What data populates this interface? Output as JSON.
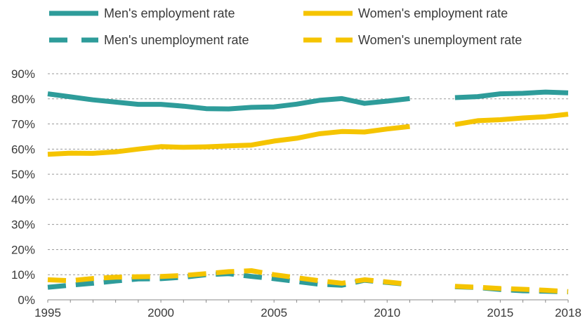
{
  "chart_data": {
    "type": "line",
    "title": "",
    "xlabel": "",
    "ylabel": "",
    "x": [
      1995,
      1996,
      1997,
      1998,
      1999,
      2000,
      2001,
      2002,
      2003,
      2004,
      2005,
      2006,
      2007,
      2008,
      2009,
      2010,
      2011,
      2012,
      2013,
      2014,
      2015,
      2016,
      2017,
      2018
    ],
    "xlim": [
      1995,
      2018
    ],
    "ylim": [
      0,
      90
    ],
    "x_ticks": [
      "1995",
      "2000",
      "2005",
      "2010",
      "2015",
      "2018"
    ],
    "x_tick_values": [
      1995,
      2000,
      2005,
      2010,
      2015,
      2018
    ],
    "y_ticks": [
      "0%",
      "10%",
      "20%",
      "30%",
      "40%",
      "50%",
      "60%",
      "70%",
      "80%",
      "90%"
    ],
    "y_tick_values": [
      0,
      10,
      20,
      30,
      40,
      50,
      60,
      70,
      80,
      90
    ],
    "grid": "horizontal dashed",
    "legend_position": "top",
    "series": [
      {
        "name": "Men's employment rate",
        "color": "#2e9c9a",
        "style": "solid",
        "values": [
          82.0,
          80.8,
          79.6,
          78.7,
          77.8,
          77.8,
          77.1,
          76.1,
          76.0,
          76.6,
          76.8,
          77.9,
          79.4,
          80.1,
          78.2,
          79.1,
          80.1,
          null,
          80.5,
          80.9,
          82.0,
          82.2,
          82.7,
          82.4
        ]
      },
      {
        "name": "Women's employment rate",
        "color": "#f5c400",
        "style": "solid",
        "values": [
          57.9,
          58.4,
          58.3,
          58.9,
          60.0,
          61.0,
          60.7,
          60.9,
          61.3,
          61.6,
          63.2,
          64.3,
          66.1,
          67.0,
          66.8,
          68.0,
          69.0,
          null,
          69.8,
          71.3,
          71.7,
          72.4,
          72.9,
          73.9
        ]
      },
      {
        "name": "Men's unemployment rate",
        "color": "#2e9c9a",
        "style": "dashed",
        "values": [
          5.0,
          5.8,
          6.6,
          7.5,
          8.3,
          8.4,
          9.0,
          10.0,
          10.4,
          9.3,
          8.4,
          7.3,
          6.2,
          5.8,
          7.8,
          6.9,
          6.1,
          null,
          5.2,
          4.9,
          4.1,
          3.6,
          3.4,
          3.2
        ]
      },
      {
        "name": "Women's unemployment rate",
        "color": "#f5c400",
        "style": "dashed",
        "values": [
          8.0,
          7.6,
          8.5,
          9.0,
          9.2,
          9.3,
          9.7,
          10.4,
          11.2,
          11.6,
          10.0,
          8.8,
          7.6,
          6.6,
          8.0,
          7.1,
          6.2,
          null,
          5.4,
          5.0,
          4.5,
          4.2,
          3.8,
          3.3
        ]
      }
    ]
  }
}
